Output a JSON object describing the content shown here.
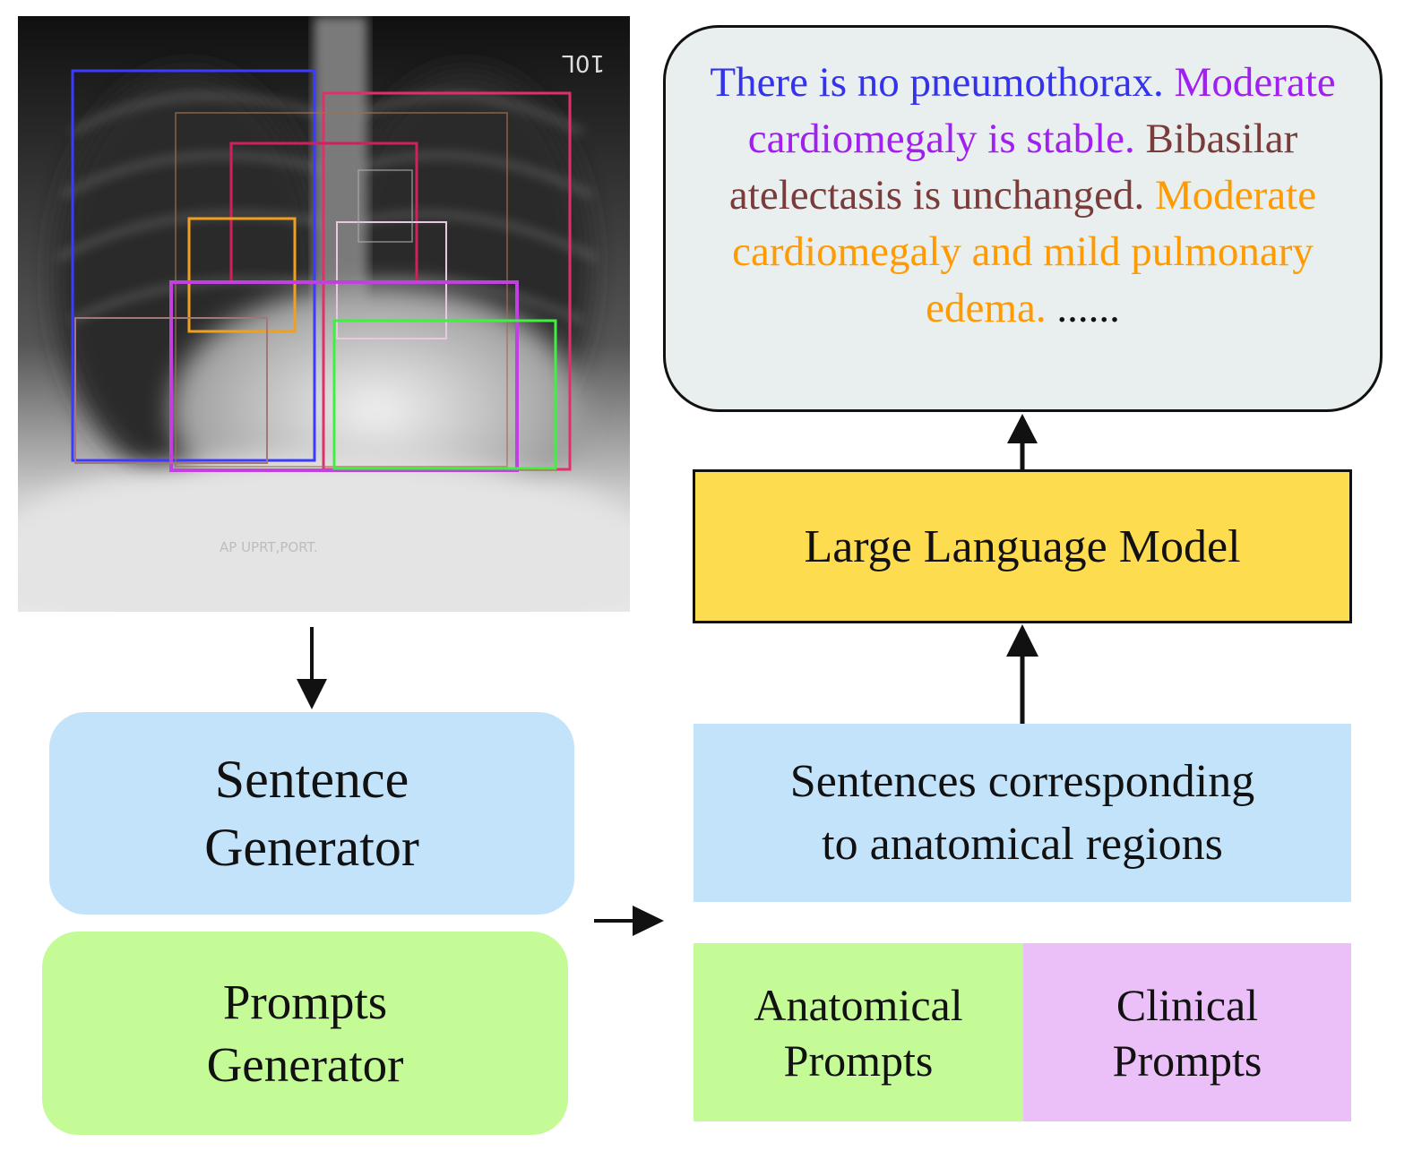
{
  "xray": {
    "film_label": "AP UPRT,PORT.",
    "corner_marker": "10L"
  },
  "report": {
    "segments": [
      {
        "text": "There is no pneumothorax.",
        "color": "#3333ee"
      },
      {
        "text": "Moderate cardiomegaly is",
        "color": "#a020f0"
      },
      {
        "text": "stable.",
        "color": "#a020f0"
      },
      {
        "text": "Bibasilar atelectasis is",
        "color": "#7a3b3b"
      },
      {
        "text": "unchanged.",
        "color": "#7a3b3b"
      },
      {
        "text": "Moderate cardiomegaly and mild pulmonary edema.",
        "color": "#ff9a00"
      },
      {
        "text": "......",
        "color": "#111111"
      }
    ]
  },
  "llm": {
    "label": "Large Language Model",
    "color": "#fedc4f"
  },
  "sentences_box": {
    "line1": "Sentences corresponding",
    "line2": "to anatomical regions",
    "color": "#c3e3fb"
  },
  "anatomical_prompts": {
    "line1": "Anatomical",
    "line2": "Prompts",
    "color": "#c5fb97"
  },
  "clinical_prompts": {
    "line1": "Clinical",
    "line2": "Prompts",
    "color": "#ebbff8"
  },
  "sentence_generator": {
    "line1": "Sentence",
    "line2": "Generator",
    "color": "#c3e3fb"
  },
  "prompts_generator": {
    "line1": "Prompts",
    "line2": "Generator",
    "color": "#c5fb97"
  }
}
